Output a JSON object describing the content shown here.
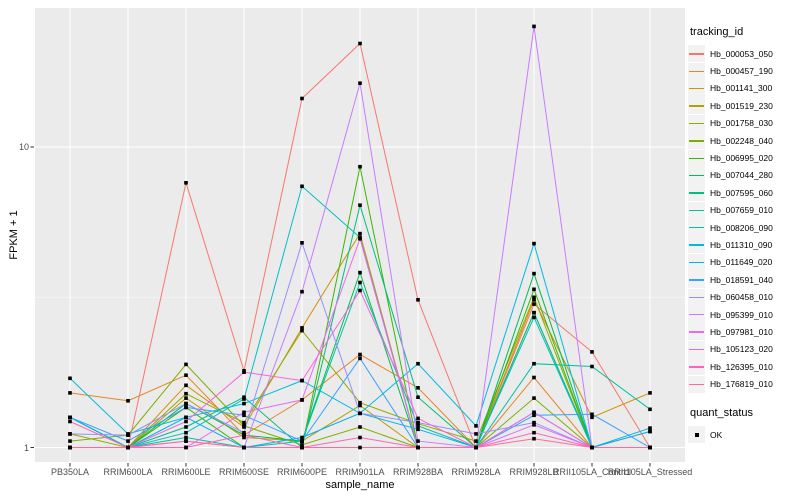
{
  "chart_data": {
    "type": "line",
    "xlabel": "sample_name",
    "ylabel": "FPKM + 1",
    "y_scale": "log10",
    "y_tick_labels": [
      "1",
      "10"
    ],
    "y_tick_values": [
      1,
      10
    ],
    "y_minor_breaks": [
      3.1623
    ],
    "ylim": [
      0.88,
      29.5
    ],
    "grid": "on",
    "legend_position": "right",
    "categories": [
      "PB350LA",
      "RRIM600LA",
      "RRIM600LE",
      "RRIM600SE",
      "RRIM600PE",
      "RRIM901LA",
      "RRIM928BA",
      "RRIM928LA",
      "RRIM928LB",
      "RRII105LA_Control",
      "RRII105LA_Stressed"
    ],
    "series": [
      {
        "name": "Hb_000053_050",
        "color": "#F8766D",
        "values": [
          1.0,
          1.0,
          7.6,
          1.8,
          14.5,
          22.1,
          3.1,
          1.0,
          3.0,
          2.08,
          1.0
        ]
      },
      {
        "name": "Hb_000457_190",
        "color": "#E88526",
        "values": [
          1.52,
          1.43,
          1.74,
          1.1,
          1.44,
          2.04,
          1.58,
          1.0,
          1.71,
          1.0,
          1.13
        ]
      },
      {
        "name": "Hb_001141_300",
        "color": "#D39200",
        "values": [
          1.26,
          1.0,
          1.61,
          1.17,
          2.5,
          5.15,
          1.0,
          1.0,
          3.1,
          1.26,
          1.52
        ]
      },
      {
        "name": "Hb_001519_230",
        "color": "#B79F00",
        "values": [
          1.0,
          1.0,
          1.46,
          1.08,
          1.05,
          1.38,
          1.0,
          1.0,
          2.81,
          1.0,
          1.0
        ]
      },
      {
        "name": "Hb_001758_030",
        "color": "#93AA00",
        "values": [
          1.11,
          1.0,
          1.51,
          1.21,
          2.45,
          1.41,
          1.2,
          1.05,
          3.16,
          1.0,
          1.0
        ]
      },
      {
        "name": "Hb_002248_040",
        "color": "#7CAE00",
        "values": [
          1.05,
          1.1,
          1.89,
          1.18,
          1.02,
          1.17,
          1.0,
          1.0,
          1.46,
          1.0,
          1.0
        ]
      },
      {
        "name": "Hb_006995_020",
        "color": "#39B600",
        "values": [
          1.0,
          1.0,
          1.36,
          1.0,
          1.0,
          8.6,
          1.0,
          1.0,
          3.36,
          1.0,
          1.0
        ]
      },
      {
        "name": "Hb_007044_280",
        "color": "#00BB4E",
        "values": [
          1.0,
          1.0,
          1.4,
          1.1,
          1.05,
          3.82,
          1.0,
          1.0,
          3.79,
          1.0,
          1.0
        ]
      },
      {
        "name": "Hb_007595_060",
        "color": "#00BF7D",
        "values": [
          1.26,
          1.0,
          1.17,
          1.47,
          1.0,
          6.4,
          1.47,
          1.0,
          2.81,
          1.0,
          1.0
        ]
      },
      {
        "name": "Hb_007659_010",
        "color": "#00C1A3",
        "values": [
          1.0,
          1.0,
          1.08,
          1.0,
          1.05,
          3.54,
          1.18,
          1.0,
          1.9,
          1.86,
          1.34
        ]
      },
      {
        "name": "Hb_008206_090",
        "color": "#00BFC4",
        "values": [
          1.0,
          1.0,
          1.12,
          1.45,
          7.4,
          5.0,
          1.0,
          1.0,
          2.71,
          1.0,
          1.0
        ]
      },
      {
        "name": "Hb_011310_090",
        "color": "#00BAE0",
        "values": [
          1.7,
          1.11,
          1.26,
          1.4,
          1.67,
          1.3,
          1.9,
          1.18,
          4.77,
          1.0,
          1.16
        ]
      },
      {
        "name": "Hb_011649_020",
        "color": "#00B0F6",
        "values": [
          1.26,
          1.0,
          1.26,
          1.0,
          1.08,
          1.3,
          1.15,
          1.0,
          1.31,
          1.0,
          1.13
        ]
      },
      {
        "name": "Hb_018591_040",
        "color": "#35A2FF",
        "values": [
          1.26,
          1.05,
          1.36,
          1.28,
          1.05,
          1.98,
          1.0,
          1.0,
          1.28,
          1.29,
          1.0
        ]
      },
      {
        "name": "Hb_060458_010",
        "color": "#9590FF",
        "values": [
          1.11,
          1.1,
          1.4,
          1.12,
          4.8,
          1.3,
          1.21,
          1.11,
          1.21,
          1.0,
          1.0
        ]
      },
      {
        "name": "Hb_095399_010",
        "color": "#C77CFF",
        "values": [
          1.0,
          1.0,
          1.05,
          1.0,
          3.3,
          16.3,
          1.05,
          1.0,
          25.2,
          1.0,
          1.0
        ]
      },
      {
        "name": "Hb_097981_010",
        "color": "#E76BF3",
        "values": [
          1.0,
          1.0,
          1.0,
          1.31,
          1.44,
          4.95,
          1.0,
          1.0,
          1.19,
          1.0,
          1.0
        ]
      },
      {
        "name": "Hb_105123_020",
        "color": "#FA62DB",
        "values": [
          1.0,
          1.0,
          1.22,
          1.78,
          1.67,
          3.33,
          1.25,
          1.0,
          1.31,
          1.0,
          1.0
        ]
      },
      {
        "name": "Hb_126395_010",
        "color": "#FF62BC",
        "values": [
          1.22,
          1.0,
          1.0,
          1.1,
          1.0,
          1.08,
          1.0,
          1.0,
          1.12,
          1.0,
          1.0
        ]
      },
      {
        "name": "Hb_176819_010",
        "color": "#FF6A98",
        "values": [
          1.0,
          1.0,
          1.05,
          1.0,
          1.0,
          1.0,
          1.0,
          1.0,
          1.07,
          1.0,
          1.0
        ]
      }
    ],
    "legend": {
      "tracking_title": "tracking_id",
      "quant_title": "quant_status",
      "quant_label": "OK"
    },
    "theme": {
      "panel_bg": "#EBEBEB",
      "grid_major": "#FFFFFF",
      "grid_minor": "#F5F5F5",
      "tick_color": "#333333",
      "tick_label_color": "#4D4D4D",
      "point_color": "#000000"
    }
  }
}
